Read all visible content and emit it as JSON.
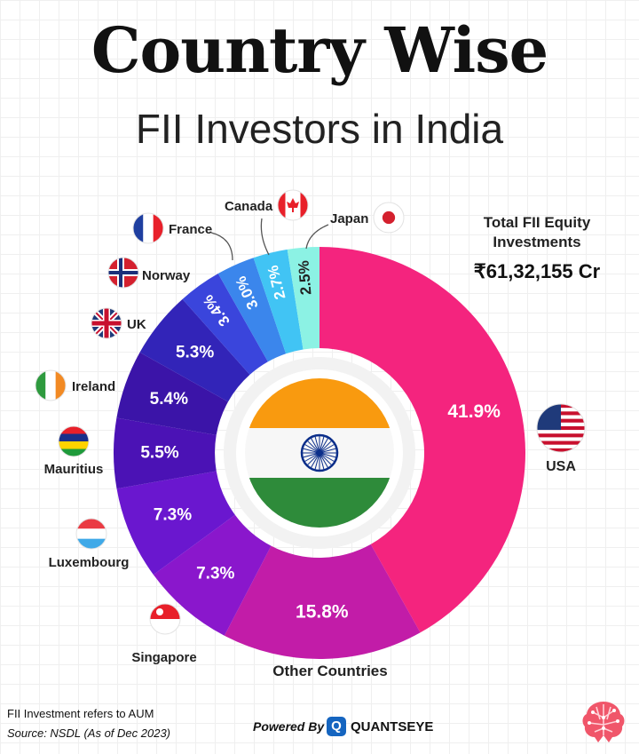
{
  "header": {
    "title": "Country Wise",
    "subtitle": "FII Investors in India"
  },
  "total": {
    "label_line1": "Total FII Equity",
    "label_line2": "Investments",
    "value": "₹61,32,155 Cr"
  },
  "chart_data": {
    "type": "pie",
    "variant": "donut",
    "center_image": "india-flag",
    "slices": [
      {
        "label": "USA",
        "value": 41.9,
        "display": "41.9%",
        "color": "#f4247e",
        "icon": "usa-flag"
      },
      {
        "label": "Other Countries",
        "value": 15.8,
        "display": "15.8%",
        "color": "#c21ca8",
        "icon": ""
      },
      {
        "label": "Singapore",
        "value": 7.3,
        "display": "7.3%",
        "color": "#8a17cc",
        "icon": "singapore-flag"
      },
      {
        "label": "Luxembourg",
        "value": 7.3,
        "display": "7.3%",
        "color": "#6a17cf",
        "icon": "luxembourg-flag"
      },
      {
        "label": "Mauritius",
        "value": 5.5,
        "display": "5.5%",
        "color": "#4b12b5",
        "icon": "mauritius-flag"
      },
      {
        "label": "Ireland",
        "value": 5.4,
        "display": "5.4%",
        "color": "#3b14a8",
        "icon": "ireland-flag"
      },
      {
        "label": "UK",
        "value": 5.3,
        "display": "5.3%",
        "color": "#3224b8",
        "icon": "uk-flag"
      },
      {
        "label": "Norway",
        "value": 3.4,
        "display": "3.4%",
        "color": "#3a45dc",
        "icon": "norway-flag"
      },
      {
        "label": "France",
        "value": 3.0,
        "display": "3.0%",
        "color": "#3b86ec",
        "icon": "france-flag"
      },
      {
        "label": "Canada",
        "value": 2.7,
        "display": "2.7%",
        "color": "#41c4f4",
        "icon": "canada-flag"
      },
      {
        "label": "Japan",
        "value": 2.5,
        "display": "2.5%",
        "color": "#8cf2e4",
        "icon": "japan-flag"
      }
    ]
  },
  "footer": {
    "note": "FII Investment refers to AUM",
    "source": "Source: NSDL (As of Dec 2023)",
    "powered_by": "Powered By",
    "brand": "QUANTSEYE",
    "brand_icon_letter": "Q",
    "brain_icon": "brain-icon"
  }
}
